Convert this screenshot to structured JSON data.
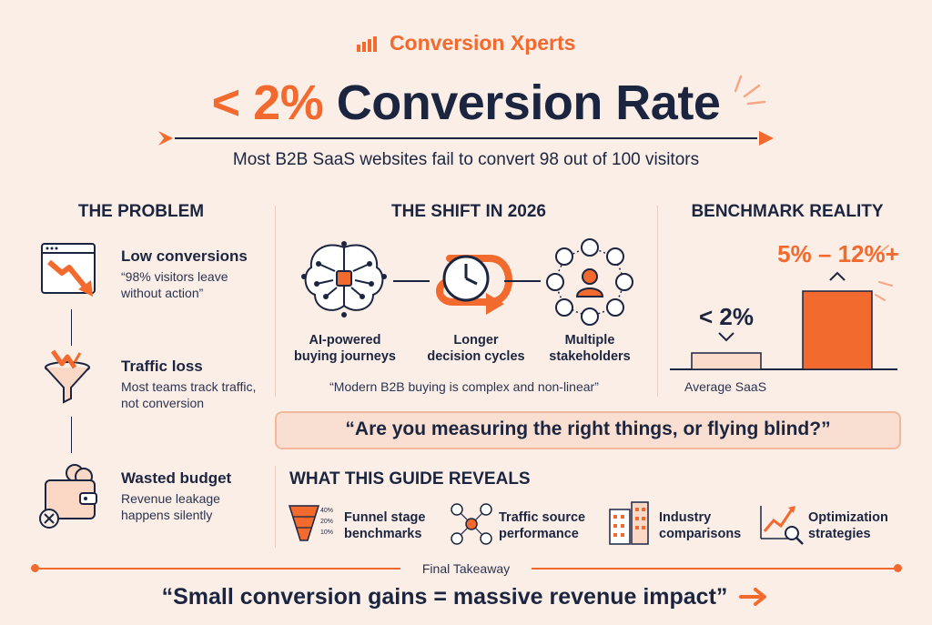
{
  "brand": {
    "name": "Conversion Xperts"
  },
  "header": {
    "headline_accent": "< 2%",
    "headline_rest": "Conversion Rate",
    "subtitle": "Most B2B SaaS websites fail to convert 98 out of 100 visitors"
  },
  "problem": {
    "title": "THE PROBLEM",
    "items": [
      {
        "title": "Low conversions",
        "desc": "“98% visitors leave without action”",
        "icon": "declining-chart-window-icon"
      },
      {
        "title": "Traffic loss",
        "desc": "Most teams track traffic, not conversion",
        "icon": "leaking-funnel-icon"
      },
      {
        "title": "Wasted budget",
        "desc": "Revenue leakage happens silently",
        "icon": "wallet-coins-icon"
      }
    ]
  },
  "shift": {
    "title": "THE SHIFT IN 2026",
    "items": [
      {
        "label": "AI-powered buying journeys",
        "icon": "ai-brain-icon"
      },
      {
        "label": "Longer decision cycles",
        "icon": "clock-loop-icon"
      },
      {
        "label": "Multiple stakeholders",
        "icon": "stakeholders-network-icon"
      }
    ],
    "quote": "“Modern B2B buying is complex and non-linear”"
  },
  "benchmark": {
    "title": "BENCHMARK REALITY",
    "average_value": "< 2%",
    "average_label": "Average SaaS",
    "top_value": "5% – 12%+"
  },
  "question": "“Are you measuring the right things, or flying blind?”",
  "reveals": {
    "title": "WHAT THIS GUIDE REVEALS",
    "items": [
      {
        "label": "Funnel stage benchmarks",
        "icon": "funnel-percent-icon"
      },
      {
        "label": "Traffic source performance",
        "icon": "traffic-sources-icon"
      },
      {
        "label": "Industry comparisons",
        "icon": "buildings-icon"
      },
      {
        "label": "Optimization strategies",
        "icon": "growth-chart-magnifier-icon"
      }
    ],
    "funnel_percents": [
      "40%",
      "20%",
      "10%"
    ]
  },
  "final": {
    "label": "Final Takeaway",
    "quote": "“Small conversion gains = massive revenue impact”"
  },
  "colors": {
    "accent": "#f26a2e",
    "navy": "#1b2540",
    "background": "#fbeee7",
    "box": "#f9dfd1"
  }
}
